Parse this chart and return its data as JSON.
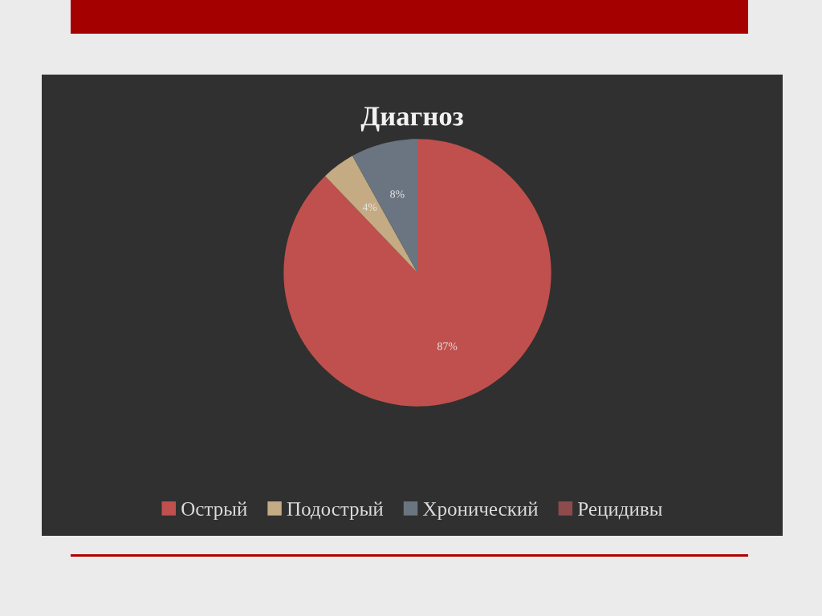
{
  "chart_data": {
    "type": "pie",
    "title": "Диагноз",
    "categories": [
      "Острый",
      "Подострый",
      "Хронический",
      "Рецидивы"
    ],
    "values": [
      87,
      4,
      8,
      0
    ],
    "colors": [
      "#c0504d",
      "#c4ab83",
      "#6b7581",
      "#8e4a4c"
    ],
    "value_labels": [
      "87%",
      "4%",
      "8%",
      null
    ],
    "legend": "bottom"
  }
}
